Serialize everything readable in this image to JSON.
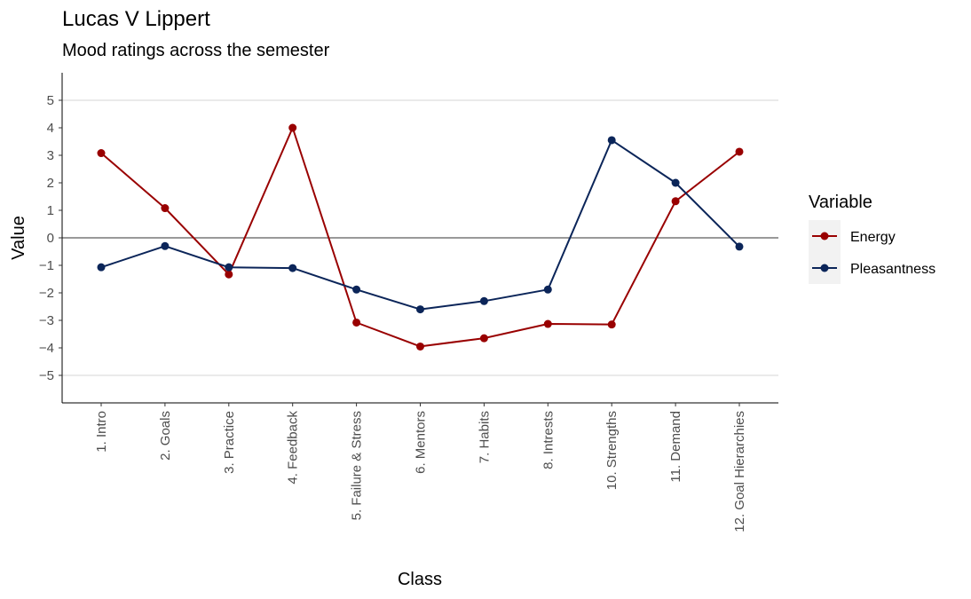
{
  "chart_data": {
    "type": "line",
    "title": "Lucas V Lippert",
    "subtitle": "Mood ratings across the semester",
    "xlabel": "Class",
    "ylabel": "Value",
    "categories": [
      "1. Intro",
      "2. Goals",
      "3. Practice",
      "4. Feedback",
      "5. Failure & Stress",
      "6. Mentors",
      "7. Habits",
      "8. Intrests",
      "10. Strengths",
      "11. Demand",
      "12. Goal Hierarchies"
    ],
    "ylim": [
      -6,
      6
    ],
    "yticks": [
      -5,
      -4,
      -3,
      -2,
      -1,
      0,
      1,
      2,
      3,
      4,
      5
    ],
    "ytick_labels": [
      "−5",
      "−4",
      "−3",
      "−2",
      "−1",
      "0",
      "1",
      "2",
      "3",
      "4",
      "5"
    ],
    "gridlines": [
      -5,
      5
    ],
    "reference_line": 0,
    "legend": {
      "title": "Variable",
      "position": "right"
    },
    "series": [
      {
        "name": "Energy",
        "color": "#990000",
        "values": [
          3.08,
          1.08,
          -1.33,
          4.0,
          -3.08,
          -3.95,
          -3.65,
          -3.13,
          -3.15,
          1.33,
          3.13
        ]
      },
      {
        "name": "Pleasantness",
        "color": "#0b2559",
        "values": [
          -1.07,
          -0.3,
          -1.07,
          -1.1,
          -1.88,
          -2.6,
          -2.3,
          -1.88,
          3.55,
          2.0,
          -0.32
        ]
      }
    ]
  }
}
